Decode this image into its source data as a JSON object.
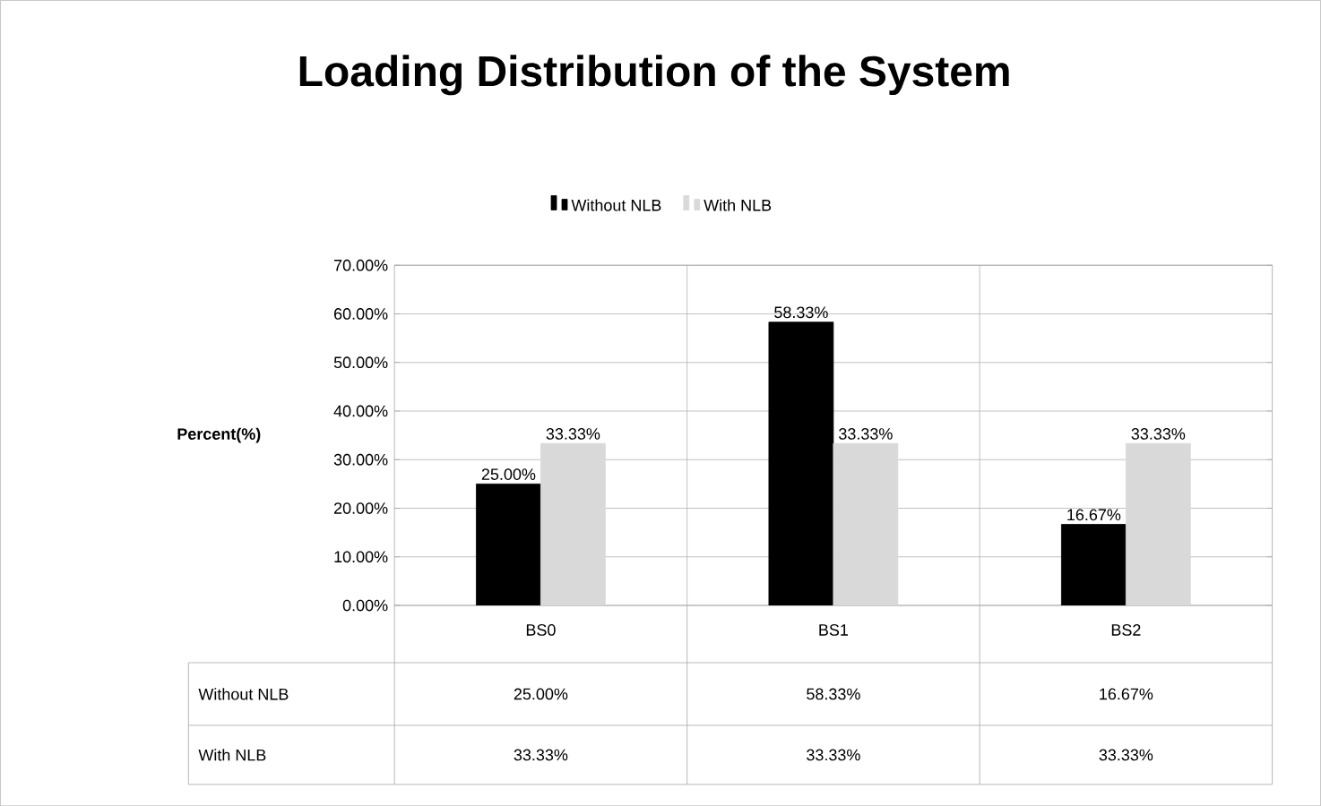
{
  "chart_data": {
    "type": "bar",
    "title": "Loading Distribution of the System",
    "ylabel": "Percent(%)",
    "categories": [
      "BS0",
      "BS1",
      "BS2"
    ],
    "series": [
      {
        "name": "Without NLB",
        "color": "#000000",
        "values": [
          25,
          58.33,
          16.67
        ],
        "value_labels": [
          "25.00%",
          "58.33%",
          "16.67%"
        ]
      },
      {
        "name": "With NLB",
        "color": "#d9d9d9",
        "values": [
          33.33,
          33.33,
          33.33
        ],
        "value_labels": [
          "33.33%",
          "33.33%",
          "33.33%"
        ]
      }
    ],
    "ylim": [
      0,
      70
    ],
    "yticks": [
      {
        "value": 0,
        "label": "0.00%"
      },
      {
        "value": 10,
        "label": "10.00%"
      },
      {
        "value": 20,
        "label": "20.00%"
      },
      {
        "value": 30,
        "label": "30.00%"
      },
      {
        "value": 40,
        "label": "40.00%"
      },
      {
        "value": 50,
        "label": "50.00%"
      },
      {
        "value": 60,
        "label": "60.00%"
      },
      {
        "value": 70,
        "label": "70.00%"
      }
    ],
    "grid": true,
    "legend": "top"
  }
}
